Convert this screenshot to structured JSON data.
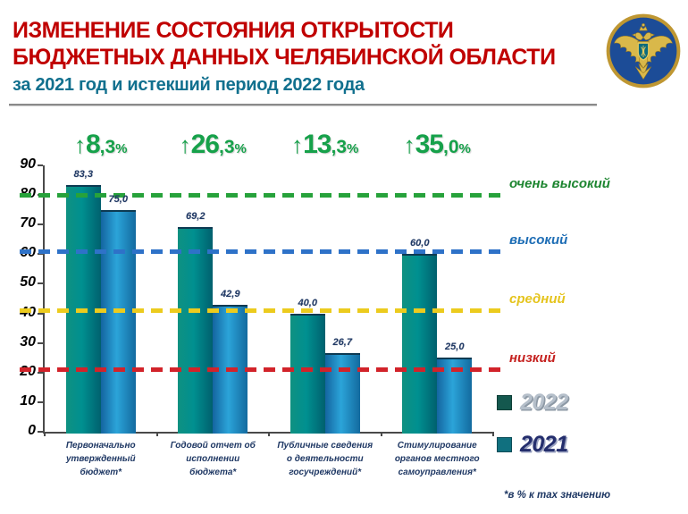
{
  "header": {
    "title_line1": "ИЗМЕНЕНИЕ СОСТОЯНИЯ ОТКРЫТОСТИ",
    "title_line2": "БЮДЖЕТНЫХ ДАННЫХ ЧЕЛЯБИНСКОЙ ОБЛАСТИ",
    "subtitle": "за 2021 год и истекший период 2022 года",
    "title_color": "#c00000",
    "subtitle_color": "#11708e",
    "emblem_icon": "russian-federal-treasury-double-headed-eagle"
  },
  "chart_data": {
    "type": "bar",
    "title": "",
    "xlabel": "",
    "ylabel": "",
    "ylim": [
      0,
      90
    ],
    "ytick_step": 10,
    "grid": false,
    "legend_position": "right-bottom",
    "categories": [
      "Первоначально\nутвержденный\nбюджет*",
      "Годовой отчет об\nисполнении\nбюджета*",
      "Публичные сведения\nо деятельности\nгосучреждений*",
      "Стимулирование\nорганов местного\nсамоуправления*"
    ],
    "series": [
      {
        "name": "2022",
        "values": [
          83.3,
          69.2,
          40.0,
          60.0
        ],
        "labels": [
          "83,3",
          "69,2",
          "40,0",
          "60,0"
        ],
        "color_left": "#0f9181",
        "color_mid": "#009090",
        "color_right": "#00606e",
        "color_cap": "#0d3a52"
      },
      {
        "name": "2021",
        "values": [
          75.0,
          42.9,
          26.7,
          25.0
        ],
        "labels": [
          "75,0",
          "42,9",
          "26,7",
          "25,0"
        ],
        "color_left": "#1465a0",
        "color_mid": "#2ba4d9",
        "color_right": "#136a9f",
        "color_cap": "#0d3a52"
      }
    ],
    "growth_labels": [
      {
        "arrow": "↑",
        "main": "8",
        "dec": ",3",
        "pct": "%"
      },
      {
        "arrow": "↑",
        "main": "26",
        "dec": ",3",
        "pct": "%"
      },
      {
        "arrow": "↑",
        "main": "13",
        "dec": ",3",
        "pct": "%"
      },
      {
        "arrow": "↑",
        "main": "35",
        "dec": ",0",
        "pct": "%"
      }
    ],
    "growth_color": "#16a14a",
    "thresholds": [
      {
        "label": "очень высокий",
        "value": 80,
        "line_color": "#27a23b",
        "label_color": "#1e8631"
      },
      {
        "label": "высокий",
        "value": 61,
        "line_color": "#2e72c8",
        "label_color": "#1d6db5"
      },
      {
        "label": "средний",
        "value": 41,
        "line_color": "#eccb1e",
        "label_color": "#e5c41d"
      },
      {
        "label": "низкий",
        "value": 21,
        "line_color": "#d2232a",
        "label_color": "#c5211f"
      }
    ],
    "legend": [
      {
        "label": "2022",
        "swatch_color": "#14584e",
        "swatch_border": "#0c3e36",
        "text_color": "#b5bfca",
        "text_shadow": "#8d99a5"
      },
      {
        "label": "2021",
        "swatch_color": "#10707f",
        "swatch_border": "#0a4c57",
        "text_color": "#242e6d",
        "text_shadow": "#9aa2c0"
      }
    ],
    "footnote": "*в % к max значению",
    "axis_color": "#4a4a4a"
  }
}
